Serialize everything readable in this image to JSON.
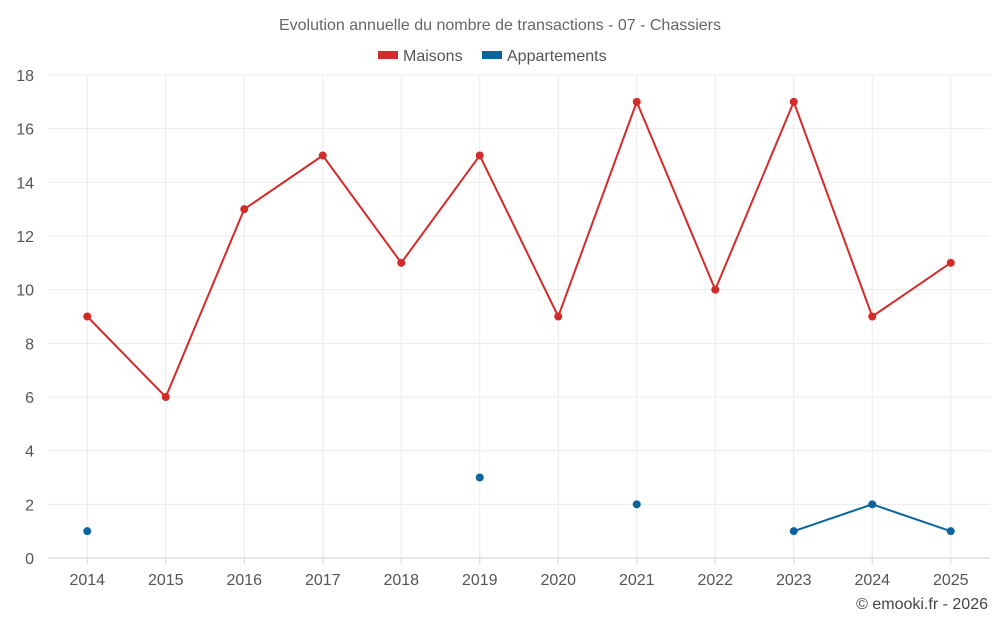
{
  "chart_data": {
    "type": "line",
    "title": "Evolution annuelle du nombre de transactions - 07 - Chassiers",
    "categories": [
      "2014",
      "2015",
      "2016",
      "2017",
      "2018",
      "2019",
      "2020",
      "2021",
      "2022",
      "2023",
      "2024",
      "2025"
    ],
    "series": [
      {
        "name": "Maisons",
        "color": "#d32a2a",
        "values": [
          9,
          6,
          13,
          15,
          11,
          15,
          9,
          17,
          10,
          17,
          9,
          11
        ]
      },
      {
        "name": "Appartements",
        "color": "#0a64a0",
        "values": [
          1,
          null,
          null,
          null,
          null,
          3,
          null,
          2,
          null,
          1,
          2,
          1
        ]
      }
    ],
    "ylim": [
      0,
      18
    ],
    "yticks": [
      "0",
      "2",
      "4",
      "6",
      "8",
      "10",
      "12",
      "14",
      "16",
      "18"
    ],
    "xlabel": "",
    "ylabel": "",
    "grid": true,
    "legend": "top-center"
  },
  "credit": "© emooki.fr - 2026"
}
